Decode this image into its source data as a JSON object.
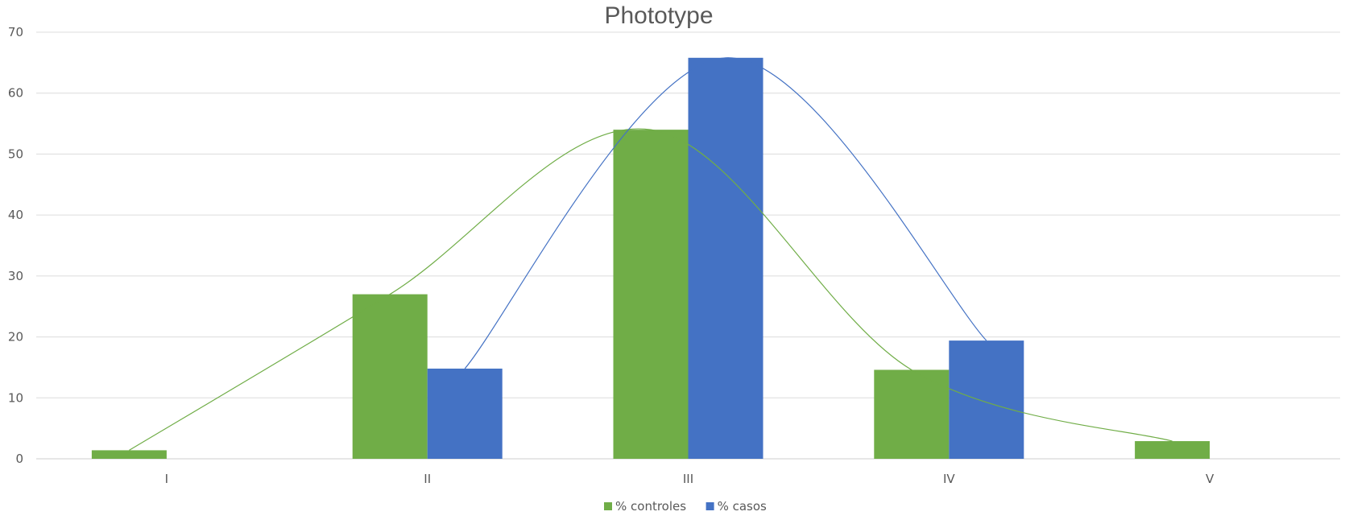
{
  "chart_data": {
    "type": "bar",
    "title": "Phototype",
    "xlabel": "",
    "ylabel": "",
    "categories": [
      "I",
      "II",
      "III",
      "IV",
      "V"
    ],
    "ylim": [
      0,
      70
    ],
    "y_ticks": [
      "0",
      "10",
      "20",
      "30",
      "40",
      "50",
      "60",
      "70"
    ],
    "grid": true,
    "legend_position": "bottom",
    "series": [
      {
        "name": "% controles",
        "color": "#70ad47",
        "values": [
          1.4,
          27,
          54,
          14.6,
          2.9
        ]
      },
      {
        "name": "% casos",
        "color": "#4472c4",
        "values": [
          null,
          14.8,
          65.8,
          19.4,
          null
        ]
      }
    ],
    "trendlines": "smoothed curve per series"
  }
}
